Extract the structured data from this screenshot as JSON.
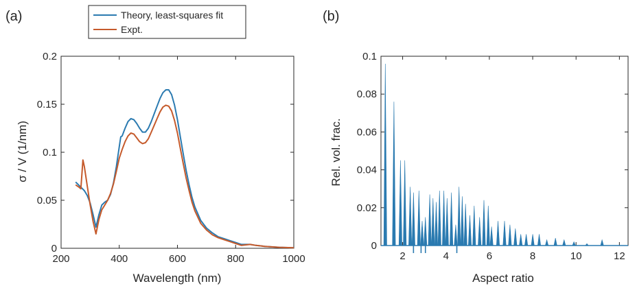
{
  "chart_data": [
    {
      "panel_label": "(a)",
      "type": "line",
      "xlabel": "Wavelength (nm)",
      "ylabel": "σ / V (1/nm)",
      "xlim": [
        200,
        1000
      ],
      "ylim": [
        0,
        0.2
      ],
      "xticks": [
        200,
        400,
        600,
        800,
        1000
      ],
      "yticks": [
        0,
        0.05,
        0.1,
        0.15,
        0.2
      ],
      "xtick_labels": [
        "200",
        "400",
        "600",
        "800",
        "1000"
      ],
      "ytick_labels": [
        "0",
        "0.05",
        "0.1",
        "0.15",
        "0.2"
      ],
      "grid": false,
      "legend_position": "top",
      "series": [
        {
          "name": "Theory, least-squares fit",
          "color": "#2a7ab0",
          "x": [
            250,
            260,
            270,
            280,
            290,
            300,
            310,
            320,
            330,
            340,
            350,
            360,
            370,
            380,
            390,
            400,
            405,
            410,
            420,
            430,
            440,
            450,
            460,
            470,
            480,
            490,
            500,
            510,
            520,
            530,
            540,
            550,
            560,
            570,
            580,
            590,
            600,
            610,
            620,
            630,
            640,
            650,
            660,
            680,
            700,
            720,
            740,
            760,
            780,
            800,
            820,
            850,
            870,
            900,
            950,
            1000
          ],
          "y": [
            0.069,
            0.066,
            0.063,
            0.06,
            0.055,
            0.047,
            0.035,
            0.022,
            0.035,
            0.045,
            0.048,
            0.05,
            0.056,
            0.068,
            0.085,
            0.106,
            0.116,
            0.117,
            0.125,
            0.132,
            0.135,
            0.134,
            0.13,
            0.125,
            0.121,
            0.121,
            0.125,
            0.132,
            0.14,
            0.148,
            0.156,
            0.162,
            0.165,
            0.165,
            0.16,
            0.149,
            0.134,
            0.116,
            0.098,
            0.081,
            0.066,
            0.053,
            0.043,
            0.029,
            0.021,
            0.016,
            0.012,
            0.01,
            0.008,
            0.006,
            0.004,
            0.004,
            0.003,
            0.002,
            0.001,
            0.0005
          ]
        },
        {
          "name": "Expt.",
          "color": "#c55a2b",
          "x": [
            250,
            260,
            268,
            275,
            280,
            290,
            300,
            310,
            320,
            330,
            340,
            350,
            360,
            370,
            380,
            390,
            400,
            410,
            420,
            430,
            440,
            450,
            460,
            470,
            480,
            490,
            500,
            510,
            520,
            530,
            540,
            550,
            560,
            570,
            580,
            590,
            600,
            610,
            620,
            630,
            640,
            650,
            660,
            680,
            700,
            720,
            740,
            760,
            780,
            800,
            820,
            850,
            870,
            900,
            950,
            1000
          ],
          "y": [
            0.066,
            0.064,
            0.062,
            0.092,
            0.085,
            0.065,
            0.045,
            0.028,
            0.015,
            0.03,
            0.04,
            0.045,
            0.05,
            0.057,
            0.067,
            0.08,
            0.094,
            0.103,
            0.111,
            0.117,
            0.12,
            0.119,
            0.115,
            0.111,
            0.109,
            0.11,
            0.114,
            0.121,
            0.128,
            0.135,
            0.142,
            0.147,
            0.149,
            0.148,
            0.143,
            0.133,
            0.12,
            0.104,
            0.088,
            0.073,
            0.06,
            0.048,
            0.039,
            0.026,
            0.019,
            0.014,
            0.011,
            0.009,
            0.007,
            0.005,
            0.003,
            0.004,
            0.003,
            0.002,
            0.001,
            0.0005
          ]
        }
      ]
    },
    {
      "panel_label": "(b)",
      "type": "bar",
      "xlabel": "Aspect ratio",
      "ylabel": "Rel. vol. frac.",
      "xlim": [
        1.0,
        12.4
      ],
      "ylim": [
        0,
        0.1
      ],
      "xticks": [
        2,
        4,
        6,
        8,
        10,
        12
      ],
      "yticks": [
        0,
        0.02,
        0.04,
        0.06,
        0.08,
        0.1
      ],
      "xtick_labels": [
        "2",
        "4",
        "6",
        "8",
        "10",
        "12"
      ],
      "ytick_labels": [
        "0",
        "0.02",
        "0.04",
        "0.06",
        "0.08",
        "0.1"
      ],
      "grid": false,
      "color": "#2a7ab0",
      "x": [
        1.2,
        1.6,
        1.9,
        2.1,
        2.35,
        2.5,
        2.75,
        2.9,
        3.05,
        3.25,
        3.4,
        3.55,
        3.7,
        3.9,
        4.05,
        4.25,
        4.45,
        4.6,
        4.75,
        4.9,
        5.1,
        5.3,
        5.55,
        5.75,
        5.95,
        6.1,
        6.4,
        6.7,
        6.95,
        7.2,
        7.45,
        7.7,
        8.0,
        8.3,
        8.65,
        9.05,
        9.45,
        9.9,
        10.5,
        11.2
      ],
      "values": [
        0.096,
        0.076,
        0.045,
        0.045,
        0.031,
        0.028,
        0.029,
        0.013,
        0.015,
        0.027,
        0.025,
        0.023,
        0.029,
        0.029,
        0.025,
        0.028,
        0.011,
        0.031,
        0.026,
        0.022,
        0.016,
        0.021,
        0.015,
        0.024,
        0.021,
        0.01,
        0.013,
        0.013,
        0.011,
        0.009,
        0.006,
        0.006,
        0.006,
        0.006,
        0.003,
        0.004,
        0.003,
        0.002,
        0.001,
        0.003
      ],
      "below_axis_marks_x": [
        2.5,
        2.85,
        3.05,
        4.5
      ]
    }
  ]
}
